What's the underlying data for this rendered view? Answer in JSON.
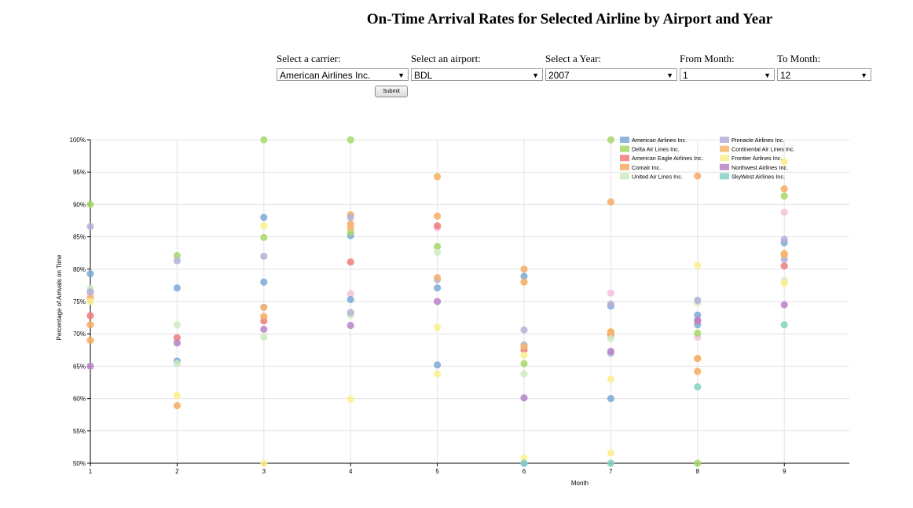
{
  "page": {
    "title": "On-Time Arrival Rates for Selected Airline by Airport and Year"
  },
  "controls": {
    "carrier": {
      "label": "Select a carrier:",
      "value": "American Airlines Inc."
    },
    "airport": {
      "label": "Select an airport:",
      "value": "BDL"
    },
    "year": {
      "label": "Select a Year:",
      "value": "2007"
    },
    "from_month": {
      "label": "From Month:",
      "value": "1"
    },
    "to_month": {
      "label": "To Month:",
      "value": "12"
    },
    "submit_label": "Submit"
  },
  "colors": {
    "American Airlines Inc.": "#7ba9d6",
    "Delta Air Lines Inc.": "#a5d86a",
    "American Eagle Airlines Inc.": "#f07c7c",
    "Comair Inc.": "#f6ad62",
    "United Air Lines Inc.": "#cfeac0",
    "Pinnacle Airlines Inc.": "#b3b0d9",
    "Continental Air Lines Inc.": "#f6b46b",
    "Frontier Airlines Inc.": "#fbf08c",
    "Northwest Airlines Inc.": "#b882c8",
    "SkyWest Airlines Inc.": "#86d0c2"
  },
  "chart_data": {
    "type": "scatter",
    "xlabel": "Month",
    "ylabel": "Percentage of Arrivals on Time",
    "x_ticks": [
      "1",
      "2",
      "3",
      "4",
      "5",
      "6",
      "7",
      "8",
      "9"
    ],
    "y_ticks": [
      "50%",
      "55%",
      "60%",
      "65%",
      "70%",
      "75%",
      "80%",
      "85%",
      "90%",
      "95%",
      "100%"
    ],
    "xlim": [
      1,
      9.75
    ],
    "ylim": [
      0.5,
      1.0
    ],
    "grid": true,
    "legend_position": "top-right",
    "series": [
      {
        "name": "American Airlines Inc.",
        "points": [
          [
            1,
            0.793
          ],
          [
            2,
            0.658
          ],
          [
            2,
            0.771
          ],
          [
            3,
            0.88
          ],
          [
            3,
            0.78
          ],
          [
            4,
            0.852
          ],
          [
            4,
            0.753
          ],
          [
            5,
            0.771
          ],
          [
            5,
            0.652
          ],
          [
            6,
            0.789
          ],
          [
            6,
            0.5
          ],
          [
            7,
            0.6
          ],
          [
            7,
            0.743
          ],
          [
            8,
            0.729
          ],
          [
            8,
            0.714
          ],
          [
            9,
            0.841
          ]
        ]
      },
      {
        "name": "Delta Air Lines Inc.",
        "points": [
          [
            1,
            0.9
          ],
          [
            2,
            0.821
          ],
          [
            3,
            1.0
          ],
          [
            3,
            0.849
          ],
          [
            4,
            1.0
          ],
          [
            4,
            0.857
          ],
          [
            5,
            0.835
          ],
          [
            6,
            0.654
          ],
          [
            7,
            1.0
          ],
          [
            8,
            0.5
          ],
          [
            8,
            0.701
          ],
          [
            9,
            0.913
          ]
        ]
      },
      {
        "name": "American Eagle Airlines Inc.",
        "points": [
          [
            1,
            0.728
          ],
          [
            2,
            0.694
          ],
          [
            3,
            0.72
          ],
          [
            4,
            0.811
          ],
          [
            5,
            0.867
          ],
          [
            6,
            0.675
          ],
          [
            7,
            0.698
          ],
          [
            8,
            0.72
          ],
          [
            9,
            0.805
          ]
        ]
      },
      {
        "name": "Comair Inc.",
        "points": [
          [
            1,
            0.714
          ],
          [
            1,
            0.69
          ],
          [
            2,
            0.589
          ],
          [
            3,
            0.727
          ],
          [
            4,
            0.884
          ],
          [
            4,
            0.87
          ],
          [
            5,
            0.943
          ],
          [
            5,
            0.882
          ],
          [
            6,
            0.8
          ],
          [
            6,
            0.78
          ],
          [
            7,
            0.904
          ],
          [
            7,
            0.703
          ],
          [
            8,
            0.944
          ],
          [
            8,
            0.662
          ],
          [
            8,
            0.642
          ],
          [
            9,
            0.924
          ],
          [
            9,
            0.824
          ]
        ]
      },
      {
        "name": "United Air Lines Inc.",
        "points": [
          [
            1,
            0.77
          ],
          [
            2,
            0.714
          ],
          [
            2,
            0.654
          ],
          [
            3,
            0.695
          ],
          [
            4,
            0.729
          ],
          [
            5,
            0.826
          ],
          [
            6,
            0.638
          ],
          [
            7,
            0.693
          ],
          [
            8,
            0.748
          ],
          [
            9,
            0.782
          ]
        ]
      },
      {
        "name": "Pinnacle Airlines Inc.",
        "points": [
          [
            1,
            0.866
          ],
          [
            1,
            0.765
          ],
          [
            2,
            0.813
          ],
          [
            3,
            0.82
          ],
          [
            3,
            0.741
          ],
          [
            4,
            0.88
          ],
          [
            4,
            0.733
          ],
          [
            5,
            0.784
          ],
          [
            6,
            0.706
          ],
          [
            6,
            0.683
          ],
          [
            7,
            0.746
          ],
          [
            7,
            0.67
          ],
          [
            8,
            0.752
          ],
          [
            9,
            0.846
          ],
          [
            9,
            0.815
          ]
        ]
      },
      {
        "name": "Continental Air Lines Inc.",
        "points": [
          [
            1,
            0.755
          ],
          [
            3,
            0.741
          ],
          [
            4,
            0.864
          ],
          [
            5,
            0.787
          ],
          [
            6,
            0.68
          ],
          [
            7,
            0.703
          ],
          [
            8,
            0.662
          ],
          [
            9,
            0.822
          ]
        ]
      },
      {
        "name": "Frontier Airlines Inc.",
        "points": [
          [
            1,
            0.75
          ],
          [
            2,
            0.605
          ],
          [
            3,
            0.867
          ],
          [
            3,
            0.5
          ],
          [
            4,
            0.599
          ],
          [
            5,
            0.71
          ],
          [
            5,
            0.638
          ],
          [
            6,
            0.667
          ],
          [
            6,
            0.508
          ],
          [
            7,
            0.63
          ],
          [
            7,
            0.516
          ],
          [
            8,
            0.806
          ],
          [
            9,
            0.966
          ],
          [
            9,
            0.778
          ]
        ]
      },
      {
        "name": "Northwest Airlines Inc.",
        "points": [
          [
            1,
            0.65
          ],
          [
            2,
            0.686
          ],
          [
            3,
            0.707
          ],
          [
            4,
            0.713
          ],
          [
            5,
            0.75
          ],
          [
            6,
            0.601
          ],
          [
            7,
            0.673
          ],
          [
            8,
            0.721
          ],
          [
            9,
            0.745
          ]
        ]
      },
      {
        "name": "SkyWest Airlines Inc.",
        "points": [
          [
            6,
            0.5
          ],
          [
            7,
            0.5
          ],
          [
            8,
            0.618
          ],
          [
            9,
            0.714
          ]
        ]
      }
    ],
    "extra_points": [
      {
        "color": "#f4c2dd",
        "points": [
          [
            1,
            0.76
          ],
          [
            4,
            0.762
          ],
          [
            5,
            0.864
          ],
          [
            7,
            0.763
          ],
          [
            8,
            0.695
          ],
          [
            9,
            0.888
          ]
        ]
      }
    ]
  }
}
